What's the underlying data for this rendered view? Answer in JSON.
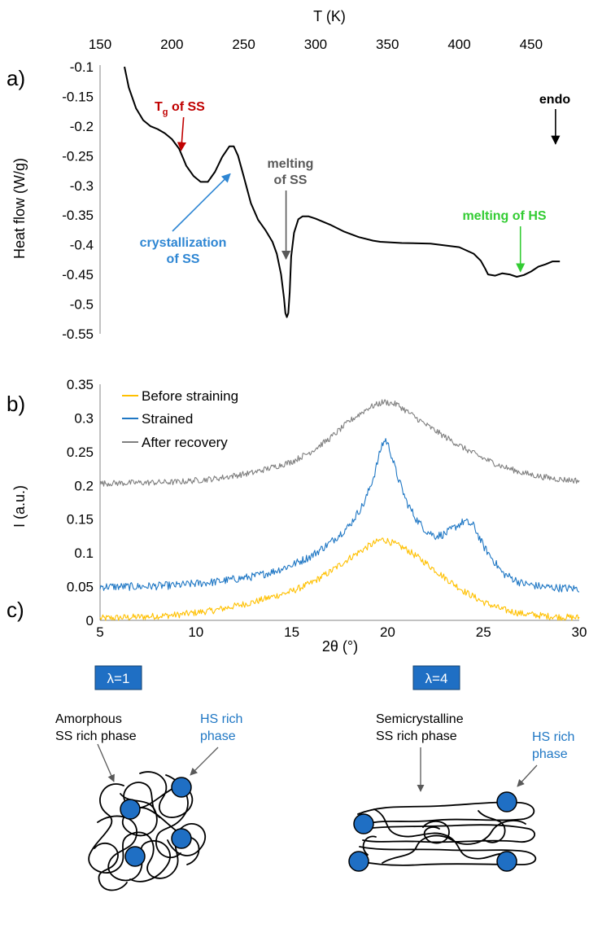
{
  "panel_labels": [
    "a)",
    "b)",
    "c)"
  ],
  "colors": {
    "dsc": "#000000",
    "before": "#ffc000",
    "strained": "#1f77c4",
    "after": "#7f7f7f",
    "tg": "#c00000",
    "cryst": "#2e86d3",
    "melt_ss": "#595959",
    "melt_hs": "#33cc33",
    "hs_ball": "#1f6fc4"
  },
  "chart_data": [
    {
      "type": "line",
      "panel": "a)",
      "xlabel": "T (K)",
      "ylabel": "Heat flow (W/g)",
      "xlim": [
        150,
        475
      ],
      "ylim": [
        -0.55,
        -0.1
      ],
      "x_ticks": [
        "150",
        "200",
        "250",
        "300",
        "350",
        "400",
        "450"
      ],
      "y_ticks": [
        "-0.1",
        "-0.15",
        "-0.2",
        "-0.25",
        "-0.3",
        "-0.35",
        "-0.4",
        "-0.45",
        "-0.5",
        "-0.55"
      ],
      "grid": false,
      "series": [
        {
          "x": [
            167,
            170,
            175,
            180,
            185,
            190,
            195,
            200,
            205,
            208,
            210,
            215,
            220,
            225,
            230,
            235,
            240,
            243,
            246,
            250,
            255,
            260,
            265,
            270,
            273,
            276,
            278,
            279,
            280,
            281,
            282,
            283,
            285,
            288,
            291,
            295,
            300,
            310,
            320,
            330,
            340,
            345,
            360,
            380,
            400,
            410,
            415,
            418,
            420,
            425,
            430,
            435,
            440,
            445,
            450,
            455,
            460,
            465,
            470
          ],
          "y": [
            -0.1,
            -0.135,
            -0.17,
            -0.19,
            -0.2,
            -0.205,
            -0.212,
            -0.222,
            -0.238,
            -0.255,
            -0.267,
            -0.284,
            -0.294,
            -0.294,
            -0.277,
            -0.252,
            -0.234,
            -0.234,
            -0.25,
            -0.285,
            -0.33,
            -0.358,
            -0.375,
            -0.395,
            -0.415,
            -0.45,
            -0.49,
            -0.515,
            -0.522,
            -0.515,
            -0.48,
            -0.42,
            -0.38,
            -0.357,
            -0.352,
            -0.352,
            -0.356,
            -0.366,
            -0.378,
            -0.387,
            -0.393,
            -0.395,
            -0.397,
            -0.398,
            -0.404,
            -0.415,
            -0.427,
            -0.44,
            -0.45,
            -0.452,
            -0.448,
            -0.45,
            -0.454,
            -0.451,
            -0.445,
            -0.437,
            -0.433,
            -0.428,
            -0.428
          ]
        }
      ],
      "annotations": [
        {
          "text": "T",
          "sub": "g",
          "suffix": " of SS",
          "x": 207,
          "y": -0.245,
          "color_key": "tg"
        },
        {
          "text": "crystallization",
          "line2": "of SS",
          "x": 240,
          "y": -0.275,
          "color_key": "cryst"
        },
        {
          "text": "melting",
          "line2": "of SS",
          "x": 280,
          "y": -0.49,
          "color_key": "melt_ss"
        },
        {
          "text": "melting of HS",
          "x": 442,
          "y": -0.452,
          "color_key": "melt_hs"
        },
        {
          "text": "endo",
          "x": 467,
          "y": -0.23,
          "color_key": "dsc"
        }
      ]
    },
    {
      "type": "line",
      "panel": "b)",
      "xlabel": "2θ (°)",
      "ylabel": "I (a.u.)",
      "xlim": [
        5,
        30
      ],
      "ylim": [
        0,
        0.35
      ],
      "x_ticks": [
        "5",
        "10",
        "15",
        "20",
        "25",
        "30"
      ],
      "y_ticks": [
        "0",
        "0.05",
        "0.1",
        "0.15",
        "0.2",
        "0.25",
        "0.3",
        "0.35"
      ],
      "grid": false,
      "legend": "top-left",
      "series": [
        {
          "name": "Before straining",
          "color_key": "before",
          "x": [
            5,
            7,
            9,
            11,
            13,
            15,
            16,
            17,
            18,
            19,
            19.7,
            20,
            21,
            22,
            23,
            24,
            25,
            26,
            27,
            28,
            29,
            30
          ],
          "y": [
            0.003,
            0.005,
            0.008,
            0.015,
            0.027,
            0.043,
            0.055,
            0.072,
            0.092,
            0.11,
            0.12,
            0.118,
            0.105,
            0.085,
            0.063,
            0.043,
            0.027,
            0.016,
            0.01,
            0.007,
            0.005,
            0.004
          ]
        },
        {
          "name": "Strained",
          "color_key": "strained",
          "x": [
            5,
            7,
            9,
            11,
            13,
            14,
            15,
            16,
            17,
            18,
            18.8,
            19.3,
            19.7,
            19.9,
            20.1,
            20.5,
            21,
            21.5,
            22,
            22.5,
            23,
            23.5,
            24,
            24.5,
            25,
            26,
            27,
            28,
            29,
            30
          ],
          "y": [
            0.05,
            0.05,
            0.052,
            0.057,
            0.065,
            0.072,
            0.082,
            0.095,
            0.115,
            0.14,
            0.175,
            0.215,
            0.26,
            0.268,
            0.255,
            0.215,
            0.175,
            0.15,
            0.133,
            0.125,
            0.128,
            0.138,
            0.147,
            0.14,
            0.11,
            0.07,
            0.055,
            0.05,
            0.048,
            0.047
          ]
        },
        {
          "name": "After recovery",
          "color_key": "after",
          "x": [
            5,
            7,
            9,
            11,
            13,
            15,
            16,
            17,
            18,
            19,
            19.8,
            20.5,
            21,
            22,
            23,
            24,
            25,
            26,
            27,
            28,
            29,
            30
          ],
          "y": [
            0.203,
            0.204,
            0.205,
            0.21,
            0.219,
            0.235,
            0.25,
            0.27,
            0.295,
            0.315,
            0.324,
            0.32,
            0.31,
            0.29,
            0.272,
            0.255,
            0.24,
            0.228,
            0.219,
            0.213,
            0.209,
            0.207
          ]
        }
      ]
    }
  ],
  "schematic": {
    "lambda_left": "λ=1",
    "lambda_right": "λ=4",
    "left_label_line1": "Amorphous",
    "left_label_line2": "SS rich phase",
    "left_hs_line1": "HS rich",
    "left_hs_line2": "phase",
    "right_label_line1": "Semicrystalline",
    "right_label_line2": "SS rich phase",
    "right_hs_line1": "HS rich",
    "right_hs_line2": "phase"
  }
}
